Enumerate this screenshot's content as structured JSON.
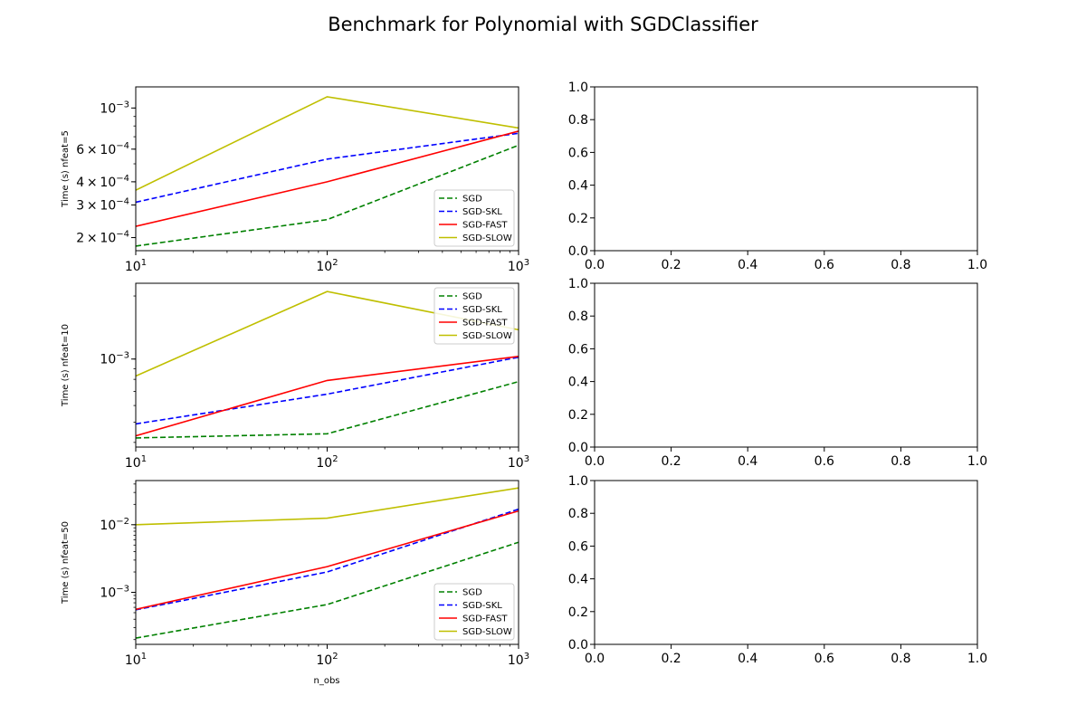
{
  "figure": {
    "title": "Benchmark for Polynomial with SGDClassifier",
    "xlabel_bottom": "n_obs",
    "x_tick_labels": [
      "10",
      "10",
      "10"
    ],
    "x_tick_exponents": [
      "1",
      "2",
      "3"
    ],
    "empty_tick_labels": [
      "0.0",
      "0.2",
      "0.4",
      "0.6",
      "0.8",
      "1.0"
    ]
  },
  "chart_data": [
    {
      "type": "line",
      "ylabel": "Time (s) nfeat=5",
      "x": [
        10,
        100,
        1000
      ],
      "xscale": "log",
      "yscale": "log",
      "xlim": [
        10,
        1000
      ],
      "ylim": [
        0.00017,
        0.0013
      ],
      "y_tick_labels": [
        {
          "mant": "2",
          "exp": "−4",
          "value": 0.0002
        },
        {
          "mant": "3",
          "exp": "−4",
          "value": 0.0003
        },
        {
          "mant": "4",
          "exp": "−4",
          "value": 0.0004
        },
        {
          "mant": "6",
          "exp": "−4",
          "value": 0.0006
        },
        {
          "mant": "",
          "exp": "−3",
          "value": 0.001
        }
      ],
      "legend": "lower-right",
      "series": [
        {
          "name": "SGD",
          "color": "#008000",
          "dash": true,
          "values": [
            0.00018,
            0.00025,
            0.00063
          ]
        },
        {
          "name": "SGD-SKL",
          "color": "#0000ff",
          "dash": true,
          "values": [
            0.00031,
            0.00053,
            0.00073
          ]
        },
        {
          "name": "SGD-FAST",
          "color": "#ff0000",
          "dash": false,
          "values": [
            0.00023,
            0.0004,
            0.00075
          ]
        },
        {
          "name": "SGD-SLOW",
          "color": "#bfbf00",
          "dash": false,
          "values": [
            0.00036,
            0.00115,
            0.00078
          ]
        }
      ]
    },
    {
      "type": "line",
      "ylabel": "Time (s) nfeat=10",
      "x": [
        10,
        100,
        1000
      ],
      "xscale": "log",
      "yscale": "log",
      "xlim": [
        10,
        1000
      ],
      "ylim": [
        0.00038,
        0.0023
      ],
      "y_tick_labels": [
        {
          "mant": "",
          "exp": "−3",
          "value": 0.001
        }
      ],
      "legend": "upper-right",
      "series": [
        {
          "name": "SGD",
          "color": "#008000",
          "dash": true,
          "values": [
            0.00042,
            0.00044,
            0.00078
          ]
        },
        {
          "name": "SGD-SKL",
          "color": "#0000ff",
          "dash": true,
          "values": [
            0.00049,
            0.00068,
            0.00102
          ]
        },
        {
          "name": "SGD-FAST",
          "color": "#ff0000",
          "dash": false,
          "values": [
            0.00043,
            0.00079,
            0.00103
          ]
        },
        {
          "name": "SGD-SLOW",
          "color": "#bfbf00",
          "dash": false,
          "values": [
            0.00083,
            0.0021,
            0.00138
          ]
        }
      ]
    },
    {
      "type": "line",
      "ylabel": "Time (s) nfeat=50",
      "x": [
        10,
        100,
        1000
      ],
      "xscale": "log",
      "yscale": "log",
      "xlim": [
        10,
        1000
      ],
      "ylim": [
        0.00017,
        0.045
      ],
      "y_tick_labels": [
        {
          "mant": "",
          "exp": "−3",
          "value": 0.001
        },
        {
          "mant": "",
          "exp": "−2",
          "value": 0.01
        }
      ],
      "legend": "lower-right",
      "series": [
        {
          "name": "SGD",
          "color": "#008000",
          "dash": true,
          "values": [
            0.00021,
            0.00066,
            0.0055
          ]
        },
        {
          "name": "SGD-SKL",
          "color": "#0000ff",
          "dash": true,
          "values": [
            0.00055,
            0.002,
            0.017
          ]
        },
        {
          "name": "SGD-FAST",
          "color": "#ff0000",
          "dash": false,
          "values": [
            0.00056,
            0.0024,
            0.016
          ]
        },
        {
          "name": "SGD-SLOW",
          "color": "#bfbf00",
          "dash": false,
          "values": [
            0.01,
            0.0125,
            0.035
          ]
        }
      ]
    }
  ]
}
